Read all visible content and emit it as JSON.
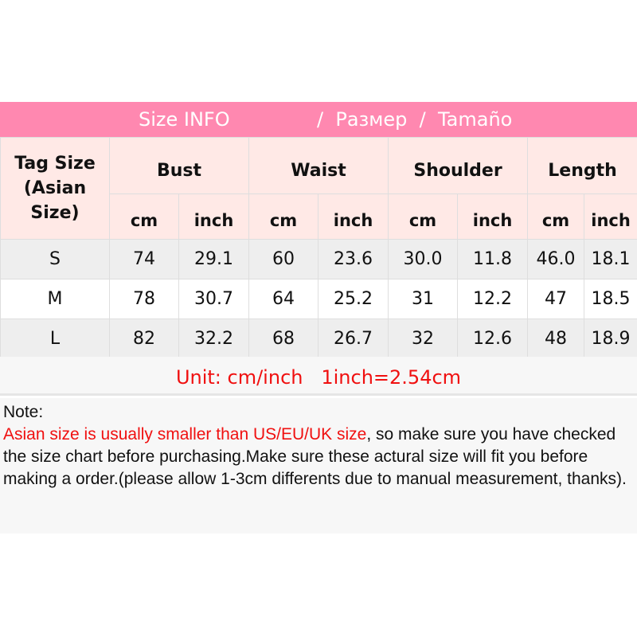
{
  "banner": {
    "title": "Size INFO",
    "ru": "/  Размер  /  Tamaño"
  },
  "table": {
    "tag_header": "Tag Size (Asian Size)",
    "groups": [
      "Bust",
      "Waist",
      "Shoulder",
      "Length"
    ],
    "units": [
      "cm",
      "inch",
      "cm",
      "inch",
      "cm",
      "inch",
      "cm",
      "inch"
    ],
    "rows": [
      {
        "size": "S",
        "values": [
          "74",
          "29.1",
          "60",
          "23.6",
          "30.0",
          "11.8",
          "46.0",
          "18.1"
        ]
      },
      {
        "size": "M",
        "values": [
          "78",
          "30.7",
          "64",
          "25.2",
          "31",
          "12.2",
          "47",
          "18.5"
        ]
      },
      {
        "size": "L",
        "values": [
          "82",
          "32.2",
          "68",
          "26.7",
          "32",
          "12.6",
          "48",
          "18.9"
        ]
      }
    ]
  },
  "unit_line": "Unit: cm/inch   1inch=2.54cm",
  "note": {
    "label": "Note:",
    "highlight": "Asian size is usually smaller than US/EU/UK size",
    "rest": ", so make sure you have checked the size chart before purchasing.Make sure these actural size will fit you before making a order.(please allow 1-3cm differents due to manual measurement, thanks)."
  },
  "colors": {
    "banner": "#ff88b0",
    "header": "#ffe9e6",
    "accent": "#f01010"
  }
}
